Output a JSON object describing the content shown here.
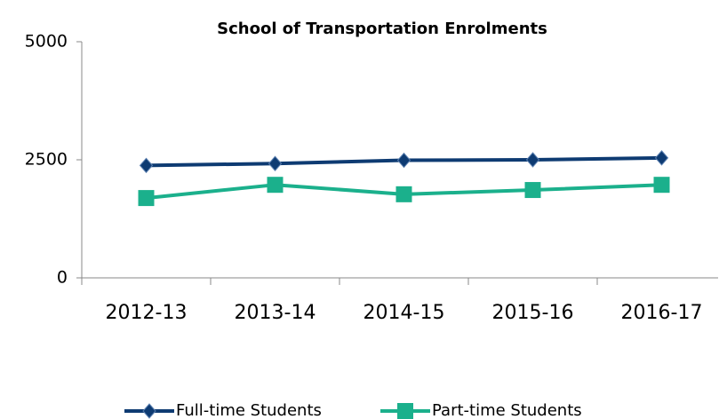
{
  "chart_data": {
    "type": "line",
    "title": "School of Transportation Enrolments",
    "categories": [
      "2012-13",
      "2013-14",
      "2014-15",
      "2015-16",
      "2016-17"
    ],
    "series": [
      {
        "name": "Full-time Students",
        "color": "#0e3b72",
        "marker": "diamond",
        "values": [
          2380,
          2420,
          2490,
          2500,
          2540
        ]
      },
      {
        "name": "Part-time Students",
        "color": "#1bb08c",
        "marker": "square",
        "values": [
          1690,
          1970,
          1770,
          1860,
          1970
        ]
      }
    ],
    "ylim": [
      0,
      5000
    ],
    "yticks": [
      0,
      2500,
      5000
    ],
    "grid": false,
    "legend": "bottom"
  }
}
